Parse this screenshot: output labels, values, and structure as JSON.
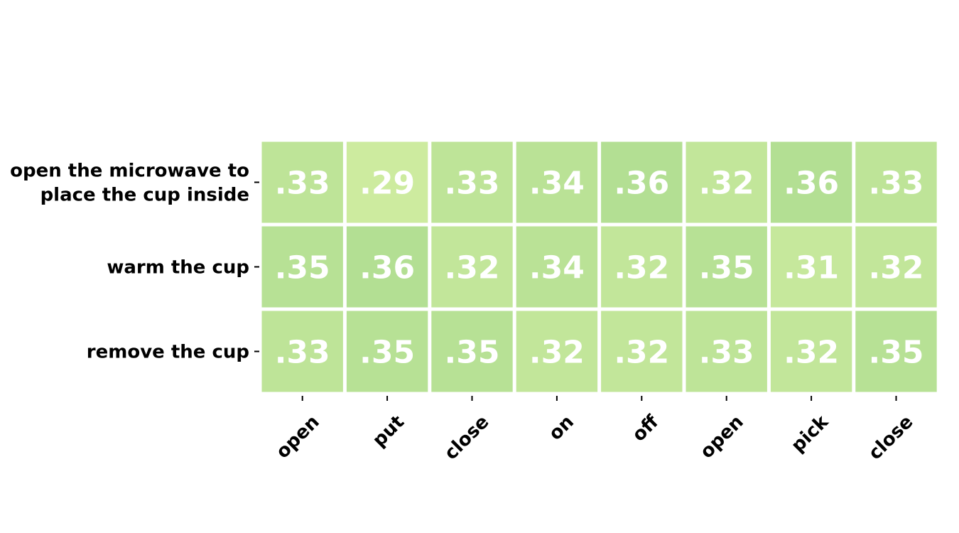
{
  "chart_data": {
    "type": "heatmap",
    "rows": [
      [
        "open the microwave to",
        "place the cup inside"
      ],
      [
        "warm the cup"
      ],
      [
        "remove the cup"
      ]
    ],
    "columns": [
      "open",
      "put",
      "close",
      "on",
      "off",
      "open",
      "pick",
      "close"
    ],
    "values": [
      [
        0.33,
        0.29,
        0.33,
        0.34,
        0.36,
        0.32,
        0.36,
        0.33
      ],
      [
        0.35,
        0.36,
        0.32,
        0.34,
        0.32,
        0.35,
        0.31,
        0.32
      ],
      [
        0.33,
        0.35,
        0.35,
        0.32,
        0.32,
        0.33,
        0.32,
        0.35
      ]
    ],
    "cell_labels": [
      [
        ".33",
        ".29",
        ".33",
        ".34",
        ".36",
        ".32",
        ".36",
        ".33"
      ],
      [
        ".35",
        ".36",
        ".32",
        ".34",
        ".32",
        ".35",
        ".31",
        ".32"
      ],
      [
        ".33",
        ".35",
        ".35",
        ".32",
        ".32",
        ".33",
        ".32",
        ".35"
      ]
    ],
    "colormap": {
      "low": "#cdeb9f",
      "high": "#b3df93",
      "min": 0.29,
      "max": 0.36
    }
  }
}
